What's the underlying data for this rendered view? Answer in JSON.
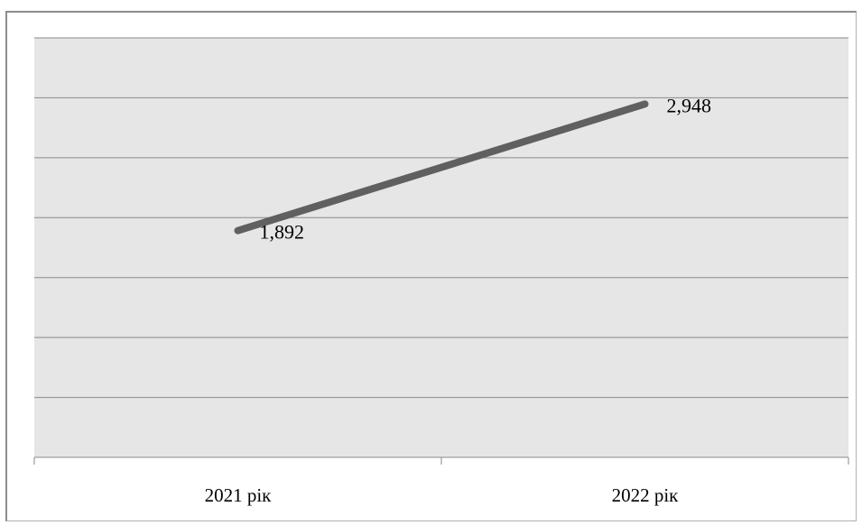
{
  "chart_data": {
    "type": "line",
    "categories": [
      "2021 рік",
      "2022 рік"
    ],
    "series": [
      {
        "values": [
          1.892,
          2.948
        ],
        "data_labels": [
          "1,892",
          "2,948"
        ],
        "color": "#606060"
      }
    ],
    "ylim": [
      0,
      3.5
    ],
    "y_gridline_step": 0.5,
    "y_tick_labels_shown": false,
    "grid": true,
    "legend": "none",
    "plot_background": "#e6e6e6",
    "gridline_color": "#8a8a8a"
  }
}
